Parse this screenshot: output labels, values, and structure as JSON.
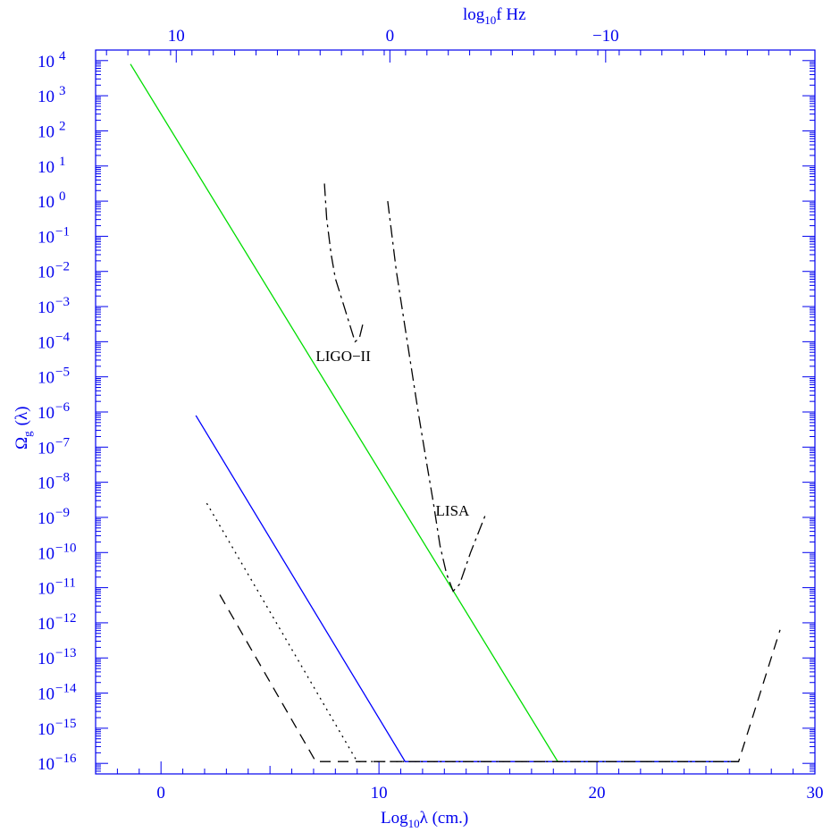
{
  "chart_data": {
    "type": "line",
    "xlabel": "Log",
    "xlabel_sub": "10",
    "xlabel_rest": "λ    (cm.)",
    "ylabel": "Ω",
    "ylabel_sub": "g",
    "ylabel_rest": "(λ)",
    "top_axis_title": "log",
    "top_axis_sub": "10",
    "top_axis_rest": "f  Hz",
    "xlim": [
      -3,
      30
    ],
    "ylim": [
      -16.3,
      4.3
    ],
    "y_scale": "log",
    "x_ticks": [
      0,
      10,
      20,
      30
    ],
    "x_tick_labels": [
      "0",
      "10",
      "20",
      "30"
    ],
    "y_ticks": [
      4,
      3,
      2,
      1,
      0,
      -1,
      -2,
      -3,
      -4,
      -5,
      -6,
      -7,
      -8,
      -9,
      -10,
      -11,
      -12,
      -13,
      -14,
      -15,
      -16
    ],
    "y_tick_labels": [
      "10 4",
      "10 3",
      "10 2",
      "10 1",
      "10 0",
      "10-1",
      "10-2",
      "10-3",
      "10-4",
      "10-5",
      "10-6",
      "10-7",
      "10-8",
      "10-9",
      "10-10",
      "10-11",
      "10-12",
      "10-13",
      "10-14",
      "10-15",
      "10-16"
    ],
    "top_ticks_x": [
      0.7,
      10.5,
      20.4
    ],
    "top_tick_labels": [
      "10",
      "0",
      "−10"
    ],
    "annotations": [
      {
        "text": "LIGO−II",
        "x": 7.1,
        "y": -4.55
      },
      {
        "text": "LISA",
        "x": 12.6,
        "y": -8.95
      }
    ],
    "series": [
      {
        "color": "#00dd00",
        "dash": "none",
        "x": [
          -1.4,
          18.2,
          26.5
        ],
        "y": [
          3.9,
          -15.95,
          -15.95
        ]
      },
      {
        "color": "#0000ff",
        "dash": "none",
        "x": [
          1.6,
          11.2,
          26.5
        ],
        "y": [
          -6.1,
          -15.95,
          -15.95
        ]
      },
      {
        "color": "#000000",
        "dash": "2,5",
        "x": [
          2.1,
          9.0,
          26.5
        ],
        "y": [
          -8.6,
          -15.95,
          -15.95
        ]
      },
      {
        "color": "#000000",
        "dash": "12,8",
        "x": [
          2.7,
          7.1,
          26.5,
          28.4
        ],
        "y": [
          -11.2,
          -15.95,
          -15.95,
          -12.2
        ]
      },
      {
        "color": "#000000",
        "dash": "14,5,3,5",
        "x": [
          7.5,
          7.6,
          7.8,
          8.0,
          8.3,
          8.6,
          8.9,
          9.1,
          9.3
        ],
        "y": [
          0.5,
          -0.5,
          -1.5,
          -2.2,
          -2.8,
          -3.4,
          -4.0,
          -3.9,
          -3.4
        ]
      },
      {
        "color": "#000000",
        "dash": "14,5,3,5",
        "x": [
          10.4,
          10.8,
          11.3,
          11.8,
          12.2,
          12.5,
          12.8,
          13.1,
          13.4,
          13.7,
          14.2,
          14.9
        ],
        "y": [
          0.0,
          -2.0,
          -4.0,
          -6.0,
          -7.5,
          -8.6,
          -9.8,
          -10.6,
          -11.1,
          -10.9,
          -10.0,
          -8.9
        ]
      }
    ]
  }
}
